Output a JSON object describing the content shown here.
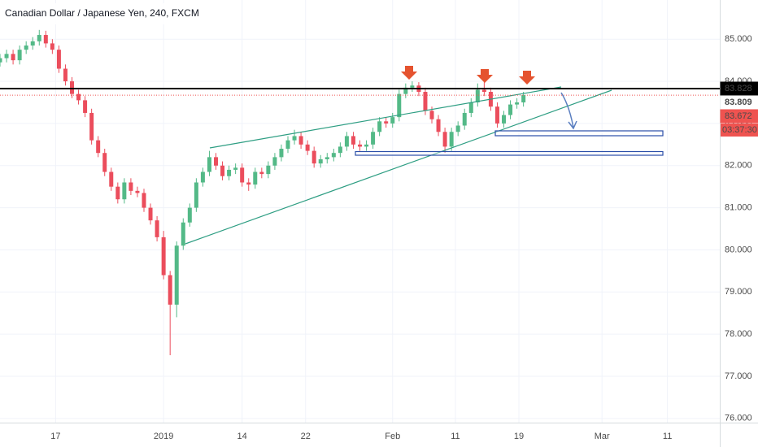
{
  "chart_data": {
    "type": "candlestick",
    "title": "Canadian Dollar / Japanese Yen, 240, FXCM",
    "x": [
      0,
      1,
      2,
      3,
      4,
      5,
      6,
      7,
      8,
      9,
      10,
      11,
      12,
      13,
      14,
      15,
      16,
      17,
      18,
      19,
      20,
      21,
      22,
      23,
      24,
      25,
      26,
      27,
      28,
      29,
      30,
      31,
      32,
      33,
      34,
      35,
      36,
      37,
      38,
      39,
      40,
      41,
      42,
      43,
      44,
      45,
      46,
      47,
      48,
      49,
      50,
      51,
      52,
      53,
      54,
      55,
      56,
      57,
      58,
      59,
      60,
      61,
      62,
      63,
      64,
      65,
      66,
      67,
      68,
      69,
      70,
      71,
      72,
      73,
      74,
      75,
      76,
      77,
      78,
      79,
      80
    ],
    "open": [
      84.45,
      84.55,
      84.65,
      84.5,
      84.75,
      84.85,
      84.95,
      85.1,
      84.9,
      84.75,
      84.3,
      84.0,
      83.7,
      83.55,
      83.25,
      82.6,
      82.3,
      81.85,
      81.5,
      81.2,
      81.6,
      81.4,
      81.35,
      81.0,
      80.7,
      80.3,
      79.4,
      78.7,
      80.1,
      80.65,
      81.0,
      81.6,
      81.85,
      82.2,
      82.0,
      81.75,
      81.9,
      81.95,
      81.6,
      81.55,
      81.85,
      81.8,
      82.0,
      82.2,
      82.4,
      82.6,
      82.7,
      82.5,
      82.35,
      82.05,
      82.15,
      82.2,
      82.3,
      82.45,
      82.7,
      82.5,
      82.45,
      82.5,
      82.8,
      83.05,
      83.0,
      83.15,
      83.7,
      83.85,
      83.9,
      83.75,
      83.3,
      83.1,
      82.8,
      82.45,
      82.8,
      82.95,
      83.25,
      83.5,
      83.8,
      83.75,
      83.4,
      83.0,
      83.2,
      83.45,
      83.5
    ],
    "high": [
      84.65,
      84.75,
      84.75,
      84.85,
      84.95,
      85.05,
      85.22,
      85.2,
      85.0,
      84.85,
      84.4,
      84.1,
      83.8,
      83.65,
      83.35,
      82.7,
      82.4,
      81.95,
      81.6,
      81.7,
      81.7,
      81.5,
      81.45,
      81.1,
      80.8,
      80.45,
      79.5,
      80.2,
      80.75,
      81.1,
      81.7,
      81.95,
      82.35,
      82.3,
      82.1,
      82.0,
      82.05,
      82.05,
      81.7,
      81.95,
      81.95,
      82.1,
      82.3,
      82.5,
      82.7,
      82.85,
      82.8,
      82.6,
      82.45,
      82.25,
      82.3,
      82.4,
      82.55,
      82.8,
      82.8,
      82.6,
      82.6,
      82.9,
      83.15,
      83.15,
      83.25,
      83.8,
      83.95,
      84.0,
      83.98,
      83.85,
      83.4,
      83.2,
      82.9,
      82.9,
      83.05,
      83.35,
      83.6,
      83.95,
      83.98,
      83.85,
      83.5,
      83.3,
      83.55,
      83.6,
      83.75
    ],
    "low": [
      84.35,
      84.45,
      84.4,
      84.4,
      84.65,
      84.75,
      84.85,
      84.8,
      84.65,
      84.2,
      83.9,
      83.6,
      83.45,
      83.15,
      82.5,
      82.2,
      81.75,
      81.4,
      81.1,
      81.1,
      81.3,
      81.25,
      80.9,
      80.6,
      80.2,
      79.3,
      77.5,
      78.4,
      80.0,
      80.55,
      80.9,
      81.5,
      81.75,
      81.9,
      81.65,
      81.65,
      81.8,
      81.5,
      81.4,
      81.45,
      81.7,
      81.7,
      81.9,
      82.1,
      82.3,
      82.5,
      82.4,
      82.25,
      81.95,
      81.95,
      82.05,
      82.1,
      82.2,
      82.35,
      82.4,
      82.35,
      82.35,
      82.4,
      82.7,
      82.9,
      82.9,
      83.05,
      83.6,
      83.75,
      83.65,
      83.2,
      83.0,
      82.7,
      82.3,
      82.35,
      82.7,
      82.85,
      83.15,
      83.4,
      83.65,
      83.3,
      82.9,
      82.9,
      83.1,
      83.35,
      83.4
    ],
    "close": [
      84.55,
      84.65,
      84.5,
      84.75,
      84.85,
      84.95,
      85.1,
      84.9,
      84.75,
      84.3,
      84.0,
      83.7,
      83.55,
      83.25,
      82.6,
      82.3,
      81.85,
      81.5,
      81.2,
      81.6,
      81.4,
      81.35,
      81.0,
      80.7,
      80.3,
      79.4,
      78.7,
      80.1,
      80.65,
      81.0,
      81.6,
      81.85,
      82.2,
      82.0,
      81.75,
      81.9,
      81.95,
      81.6,
      81.55,
      81.85,
      81.8,
      82.0,
      82.2,
      82.4,
      82.6,
      82.7,
      82.5,
      82.35,
      82.05,
      82.15,
      82.2,
      82.3,
      82.45,
      82.7,
      82.5,
      82.45,
      82.5,
      82.8,
      83.05,
      83.0,
      83.15,
      83.7,
      83.85,
      83.9,
      83.75,
      83.3,
      83.1,
      82.8,
      82.45,
      82.8,
      82.95,
      83.25,
      83.5,
      83.8,
      83.75,
      83.4,
      83.0,
      83.2,
      83.45,
      83.5,
      83.672
    ],
    "up_color": "#53b987",
    "down_color": "#eb4d5c",
    "xlim": [
      0,
      110
    ],
    "ylim": [
      75.9,
      85.93
    ],
    "xticks": [
      {
        "value": 8.5,
        "label": "17"
      },
      {
        "value": 25,
        "label": "2019"
      },
      {
        "value": 37,
        "label": "14"
      },
      {
        "value": 46.7,
        "label": "22"
      },
      {
        "value": 60,
        "label": "Feb"
      },
      {
        "value": 69.6,
        "label": "11"
      },
      {
        "value": 79.3,
        "label": "19"
      },
      {
        "value": 92,
        "label": "Mar"
      },
      {
        "value": 102,
        "label": "11"
      }
    ],
    "yticks": [
      {
        "value": 76,
        "label": "76.000"
      },
      {
        "value": 77,
        "label": "77.000"
      },
      {
        "value": 78,
        "label": "78.000"
      },
      {
        "value": 79,
        "label": "79.000"
      },
      {
        "value": 80,
        "label": "80.000"
      },
      {
        "value": 81,
        "label": "81.000"
      },
      {
        "value": 82,
        "label": "82.000"
      },
      {
        "value": 83,
        "label": "83.000"
      },
      {
        "value": 84,
        "label": "84.000"
      },
      {
        "value": 85,
        "label": "85.000"
      }
    ],
    "grid": true,
    "price_lines": [
      {
        "value": 83.828,
        "color": "#000000"
      },
      {
        "value": 83.809,
        "color": "#ffffff"
      },
      {
        "value": 83.672,
        "color": "#ef5350"
      }
    ],
    "countdown": "03:37:30"
  }
}
